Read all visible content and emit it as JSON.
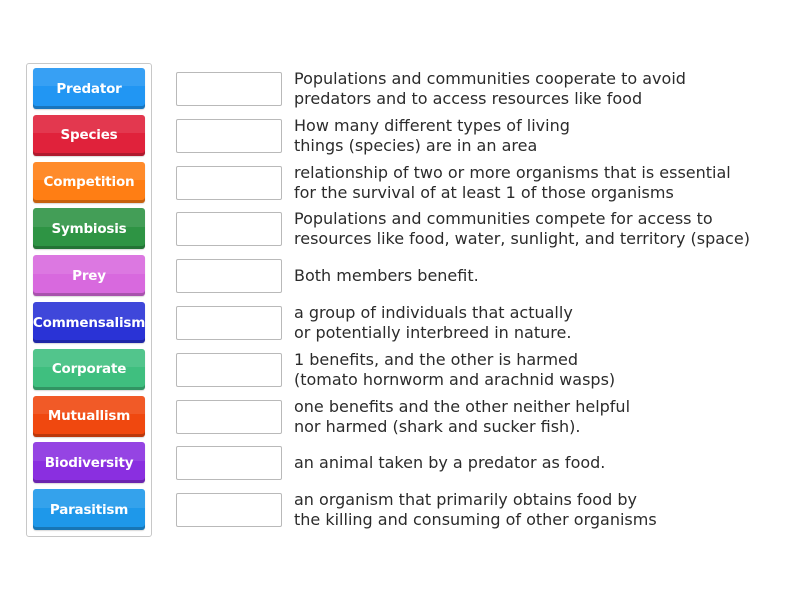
{
  "terms": [
    {
      "label": "Predator",
      "color": "#2196f3"
    },
    {
      "label": "Species",
      "color": "#e0223b"
    },
    {
      "label": "Competition",
      "color": "#ff7e14"
    },
    {
      "label": "Symbiosis",
      "color": "#2e9444"
    },
    {
      "label": "Prey",
      "color": "#d869de"
    },
    {
      "label": "Commensalism",
      "color": "#2a33d6"
    },
    {
      "label": "Corporate",
      "color": "#3fbf7f"
    },
    {
      "label": "Mutuallism",
      "color": "#f0480f"
    },
    {
      "label": "Biodiversity",
      "color": "#8a2fe0"
    },
    {
      "label": "Parasitism",
      "color": "#1e98ea"
    }
  ],
  "definitions": [
    "Populations and communities cooperate to avoid\npredators and to access resources like food",
    "How many different types of living\nthings (species) are in an area",
    "relationship of two or more organisms that is essential\nfor the survival of at least 1 of those organisms",
    "Populations and communities compete for access to\nresources like food, water, sunlight, and territory (space)",
    "Both members benefit.",
    "a group of individuals that actually\nor potentially interbreed in nature.",
    "1 benefits, and the other is harmed\n(tomato hornworm and arachnid wasps)",
    "one benefits and the other neither helpful\nnor harmed (shark and sucker fish).",
    "an animal taken by a predator as food.",
    "an organism that primarily obtains food by\nthe killing and consuming of other organisms"
  ]
}
